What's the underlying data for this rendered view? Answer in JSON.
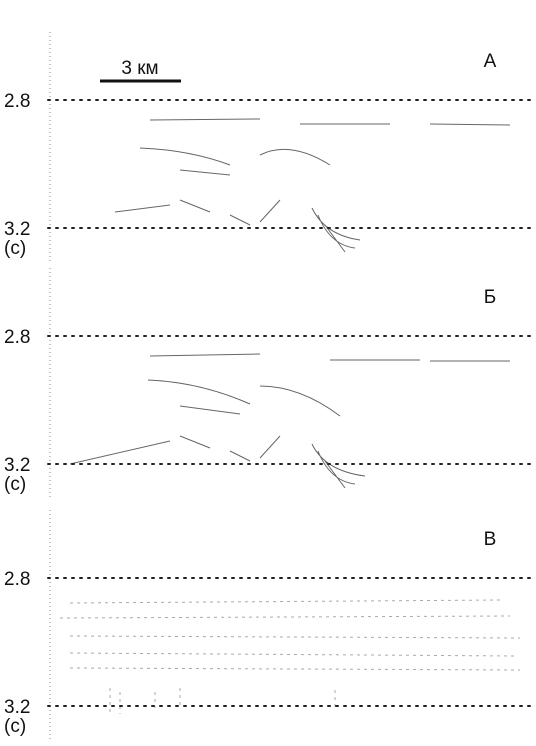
{
  "scale_bar": "3 км",
  "panels": [
    {
      "label": "А",
      "ticks": [
        "2.8",
        "3.2"
      ],
      "unit": "(с)"
    },
    {
      "label": "Б",
      "ticks": [
        "2.8",
        "3.2"
      ],
      "unit": "(с)"
    },
    {
      "label": "В",
      "ticks": [
        "2.8",
        "3.2"
      ],
      "unit": "(с)"
    }
  ]
}
